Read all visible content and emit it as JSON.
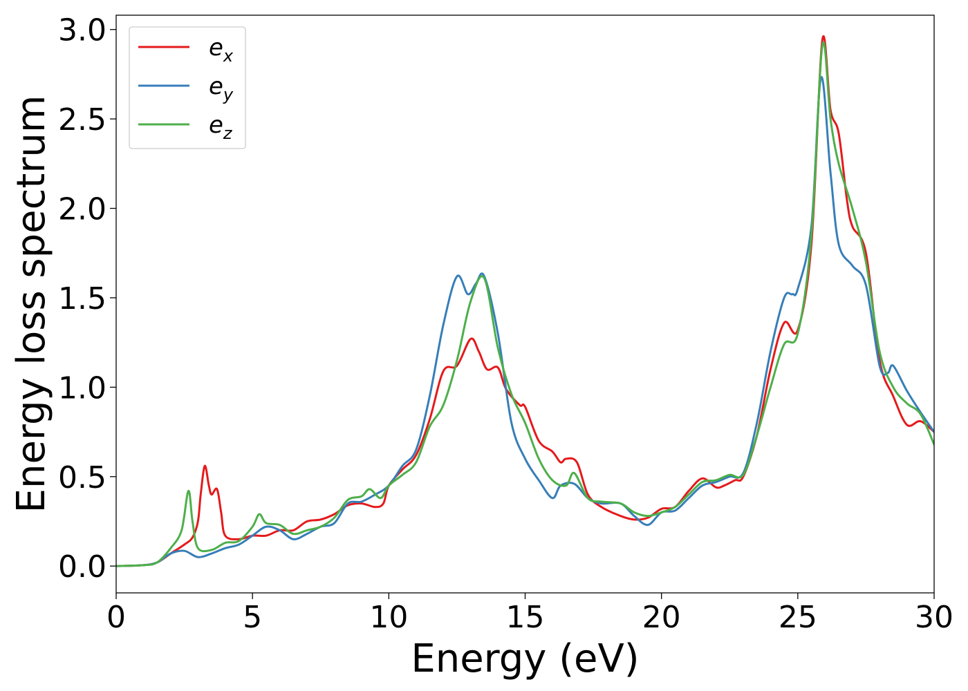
{
  "chart_data": {
    "type": "line",
    "title": "",
    "xlabel": "Energy (eV)",
    "ylabel": "Energy loss spectrum",
    "xlim": [
      0,
      30
    ],
    "ylim": [
      -0.15,
      3.08
    ],
    "xticks": [
      0,
      5,
      10,
      15,
      20,
      25,
      30
    ],
    "xtick_labels": [
      "0",
      "5",
      "10",
      "15",
      "20",
      "25",
      "30"
    ],
    "yticks": [
      0.0,
      0.5,
      1.0,
      1.5,
      2.0,
      2.5,
      3.0
    ],
    "ytick_labels": [
      "0.0",
      "0.5",
      "1.0",
      "1.5",
      "2.0",
      "2.5",
      "3.0"
    ],
    "grid": false,
    "legend_position": "top-left",
    "series": [
      {
        "name": "e",
        "name_subscript": "x",
        "color": "#e41a1c",
        "points": [
          [
            0,
            0
          ],
          [
            1,
            0.005
          ],
          [
            1.5,
            0.02
          ],
          [
            2,
            0.07
          ],
          [
            2.5,
            0.12
          ],
          [
            2.8,
            0.16
          ],
          [
            3.0,
            0.25
          ],
          [
            3.1,
            0.4
          ],
          [
            3.25,
            0.56
          ],
          [
            3.4,
            0.45
          ],
          [
            3.5,
            0.4
          ],
          [
            3.7,
            0.43
          ],
          [
            3.85,
            0.3
          ],
          [
            4.0,
            0.17
          ],
          [
            4.5,
            0.15
          ],
          [
            5,
            0.17
          ],
          [
            5.5,
            0.17
          ],
          [
            6,
            0.2
          ],
          [
            6.5,
            0.2
          ],
          [
            7,
            0.25
          ],
          [
            7.5,
            0.26
          ],
          [
            8,
            0.29
          ],
          [
            8.5,
            0.34
          ],
          [
            9,
            0.35
          ],
          [
            9.5,
            0.33
          ],
          [
            9.8,
            0.35
          ],
          [
            10,
            0.45
          ],
          [
            10.5,
            0.54
          ],
          [
            11,
            0.62
          ],
          [
            11.5,
            0.82
          ],
          [
            12,
            1.09
          ],
          [
            12.5,
            1.12
          ],
          [
            13,
            1.27
          ],
          [
            13.3,
            1.2
          ],
          [
            13.6,
            1.1
          ],
          [
            14,
            1.11
          ],
          [
            14.3,
            0.99
          ],
          [
            14.8,
            0.9
          ],
          [
            15,
            0.89
          ],
          [
            15.5,
            0.7
          ],
          [
            16,
            0.64
          ],
          [
            16.3,
            0.58
          ],
          [
            16.5,
            0.6
          ],
          [
            16.9,
            0.58
          ],
          [
            17.3,
            0.4
          ],
          [
            17.8,
            0.33
          ],
          [
            18.5,
            0.28
          ],
          [
            19,
            0.26
          ],
          [
            19.5,
            0.27
          ],
          [
            20,
            0.32
          ],
          [
            20.5,
            0.33
          ],
          [
            21,
            0.42
          ],
          [
            21.5,
            0.49
          ],
          [
            22,
            0.44
          ],
          [
            22.3,
            0.45
          ],
          [
            22.7,
            0.48
          ],
          [
            23,
            0.5
          ],
          [
            23.5,
            0.73
          ],
          [
            24,
            1.1
          ],
          [
            24.5,
            1.36
          ],
          [
            25,
            1.32
          ],
          [
            25.5,
            1.8
          ],
          [
            25.9,
            2.94
          ],
          [
            26.2,
            2.55
          ],
          [
            26.5,
            2.42
          ],
          [
            26.8,
            2.05
          ],
          [
            27,
            1.9
          ],
          [
            27.5,
            1.75
          ],
          [
            28,
            1.15
          ],
          [
            28.5,
            0.95
          ],
          [
            29,
            0.79
          ],
          [
            29.5,
            0.81
          ],
          [
            30,
            0.75
          ]
        ]
      },
      {
        "name": "e",
        "name_subscript": "y",
        "color": "#377eb8",
        "points": [
          [
            0,
            0
          ],
          [
            1,
            0.005
          ],
          [
            1.5,
            0.02
          ],
          [
            2,
            0.07
          ],
          [
            2.5,
            0.085
          ],
          [
            3.0,
            0.05
          ],
          [
            3.5,
            0.07
          ],
          [
            4.0,
            0.1
          ],
          [
            4.5,
            0.12
          ],
          [
            5,
            0.17
          ],
          [
            5.5,
            0.22
          ],
          [
            6,
            0.2
          ],
          [
            6.5,
            0.15
          ],
          [
            7,
            0.18
          ],
          [
            7.5,
            0.22
          ],
          [
            8,
            0.24
          ],
          [
            8.5,
            0.35
          ],
          [
            9,
            0.36
          ],
          [
            9.5,
            0.4
          ],
          [
            10,
            0.45
          ],
          [
            10.5,
            0.56
          ],
          [
            11,
            0.65
          ],
          [
            11.5,
            0.95
          ],
          [
            12,
            1.35
          ],
          [
            12.5,
            1.62
          ],
          [
            12.9,
            1.52
          ],
          [
            13.2,
            1.58
          ],
          [
            13.5,
            1.62
          ],
          [
            14,
            1.3
          ],
          [
            14.5,
            0.8
          ],
          [
            15,
            0.6
          ],
          [
            15.5,
            0.48
          ],
          [
            16,
            0.38
          ],
          [
            16.3,
            0.45
          ],
          [
            16.8,
            0.46
          ],
          [
            17.3,
            0.38
          ],
          [
            17.8,
            0.35
          ],
          [
            18.5,
            0.35
          ],
          [
            19,
            0.28
          ],
          [
            19.5,
            0.23
          ],
          [
            20,
            0.3
          ],
          [
            20.5,
            0.31
          ],
          [
            21,
            0.38
          ],
          [
            21.5,
            0.45
          ],
          [
            22,
            0.47
          ],
          [
            22.5,
            0.5
          ],
          [
            23,
            0.52
          ],
          [
            23.5,
            0.8
          ],
          [
            24,
            1.2
          ],
          [
            24.5,
            1.5
          ],
          [
            24.8,
            1.52
          ],
          [
            25,
            1.55
          ],
          [
            25.5,
            1.9
          ],
          [
            25.85,
            2.73
          ],
          [
            26.2,
            2.2
          ],
          [
            26.5,
            1.8
          ],
          [
            27,
            1.68
          ],
          [
            27.5,
            1.57
          ],
          [
            28,
            1.12
          ],
          [
            28.3,
            1.08
          ],
          [
            28.5,
            1.12
          ],
          [
            29,
            0.98
          ],
          [
            29.5,
            0.86
          ],
          [
            30,
            0.75
          ]
        ]
      },
      {
        "name": "e",
        "name_subscript": "z",
        "color": "#4daf4a",
        "points": [
          [
            0,
            0
          ],
          [
            1,
            0.005
          ],
          [
            1.5,
            0.02
          ],
          [
            2,
            0.1
          ],
          [
            2.4,
            0.2
          ],
          [
            2.65,
            0.42
          ],
          [
            2.8,
            0.25
          ],
          [
            3.0,
            0.1
          ],
          [
            3.5,
            0.09
          ],
          [
            4.0,
            0.13
          ],
          [
            4.5,
            0.14
          ],
          [
            5,
            0.22
          ],
          [
            5.25,
            0.29
          ],
          [
            5.5,
            0.24
          ],
          [
            6,
            0.23
          ],
          [
            6.5,
            0.18
          ],
          [
            7,
            0.2
          ],
          [
            7.5,
            0.22
          ],
          [
            8,
            0.27
          ],
          [
            8.5,
            0.37
          ],
          [
            9,
            0.39
          ],
          [
            9.3,
            0.43
          ],
          [
            9.7,
            0.38
          ],
          [
            10,
            0.45
          ],
          [
            10.5,
            0.51
          ],
          [
            11,
            0.58
          ],
          [
            11.5,
            0.78
          ],
          [
            12,
            0.9
          ],
          [
            12.5,
            1.15
          ],
          [
            13,
            1.48
          ],
          [
            13.5,
            1.61
          ],
          [
            14,
            1.22
          ],
          [
            14.5,
            0.96
          ],
          [
            15,
            0.8
          ],
          [
            15.5,
            0.6
          ],
          [
            16,
            0.48
          ],
          [
            16.5,
            0.45
          ],
          [
            16.8,
            0.52
          ],
          [
            17.3,
            0.38
          ],
          [
            17.8,
            0.36
          ],
          [
            18.5,
            0.35
          ],
          [
            19,
            0.3
          ],
          [
            19.5,
            0.28
          ],
          [
            20,
            0.3
          ],
          [
            20.5,
            0.33
          ],
          [
            21,
            0.4
          ],
          [
            21.5,
            0.47
          ],
          [
            22,
            0.48
          ],
          [
            22.5,
            0.51
          ],
          [
            23,
            0.51
          ],
          [
            23.5,
            0.73
          ],
          [
            24,
            1.0
          ],
          [
            24.5,
            1.24
          ],
          [
            25,
            1.3
          ],
          [
            25.5,
            1.85
          ],
          [
            25.9,
            2.91
          ],
          [
            26.2,
            2.5
          ],
          [
            26.5,
            2.25
          ],
          [
            27,
            2.0
          ],
          [
            27.5,
            1.7
          ],
          [
            28,
            1.2
          ],
          [
            28.5,
            1.0
          ],
          [
            29,
            0.91
          ],
          [
            29.5,
            0.85
          ],
          [
            30,
            0.68
          ]
        ]
      }
    ]
  }
}
